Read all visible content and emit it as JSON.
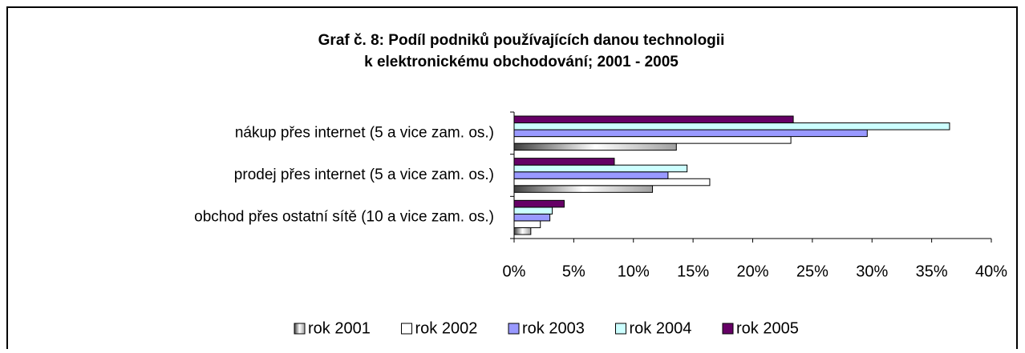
{
  "chart_data": {
    "type": "bar",
    "orientation": "horizontal",
    "title": [
      "Graf č. 8: Podíl podniků používajících danou technologii",
      "k elektronickému obchodování; 2001 - 2005"
    ],
    "categories": [
      "nákup přes internet (5 a vice zam. os.)",
      "prodej přes internet (5 a vice zam. os.)",
      "obchod přes ostatní sítě (10 a vice zam. os.)"
    ],
    "series": [
      {
        "name": "rok 2001",
        "color": "#c0c0c0",
        "values": [
          13.6,
          11.6,
          1.4
        ]
      },
      {
        "name": "rok 2002",
        "color": "#ffffff",
        "values": [
          23.2,
          16.4,
          2.2
        ]
      },
      {
        "name": "rok 2003",
        "color": "#9999ff",
        "values": [
          29.6,
          12.9,
          3.0
        ]
      },
      {
        "name": "rok 2004",
        "color": "#ccffff",
        "values": [
          36.5,
          14.5,
          3.2
        ]
      },
      {
        "name": "rok 2005",
        "color": "#660066",
        "values": [
          23.4,
          8.4,
          4.2
        ]
      }
    ],
    "xlim": [
      0,
      40
    ],
    "xticks": [
      {
        "value": 0,
        "label": "0%"
      },
      {
        "value": 5,
        "label": "5%"
      },
      {
        "value": 10,
        "label": "10%"
      },
      {
        "value": 15,
        "label": "15%"
      },
      {
        "value": 20,
        "label": "20%"
      },
      {
        "value": 25,
        "label": "25%"
      },
      {
        "value": 30,
        "label": "30%"
      },
      {
        "value": 35,
        "label": "35%"
      },
      {
        "value": 40,
        "label": "40%"
      }
    ],
    "legend": "bottom"
  }
}
